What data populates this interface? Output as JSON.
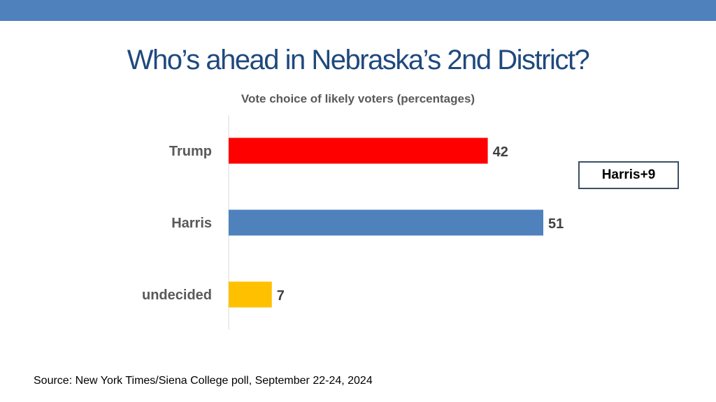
{
  "slide": {
    "title": "Who’s ahead in Nebraska’s 2nd District?",
    "subtitle": "Vote choice of likely voters (percentages)",
    "callout": "Harris+9",
    "source": "Source: New York Times/Siena College poll, September 22-24, 2024",
    "colors": {
      "top_bar": "#4f81bd",
      "title": "#1f497d"
    }
  },
  "chart_data": {
    "type": "bar",
    "orientation": "horizontal",
    "title": "Vote choice of likely voters (percentages)",
    "categories": [
      "Trump",
      "Harris",
      "undecided"
    ],
    "values": [
      42,
      51,
      7
    ],
    "colors": [
      "#ff0000",
      "#4f81bd",
      "#ffc000"
    ],
    "data_labels": [
      "42",
      "51",
      "7"
    ],
    "xlim": [
      0,
      51
    ],
    "grid": false,
    "legend": "none"
  }
}
